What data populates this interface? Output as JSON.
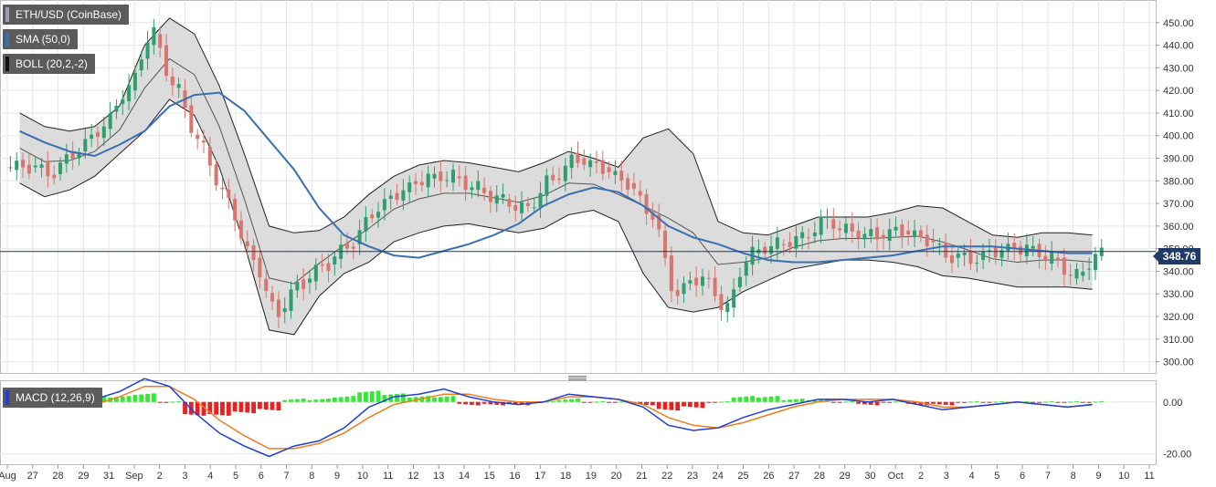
{
  "legend": {
    "symbol": "ETH/USD (CoinBase)",
    "sma": "SMA (50,0)",
    "boll": "BOLL (20,2,-2)",
    "macd": "MACD (12,26,9)"
  },
  "colors": {
    "up": "#2e9e6e",
    "down": "#d9756f",
    "sma": "#3a6fb0",
    "band_fill": "#d6d6d6",
    "macd_line": "#1f3fd6",
    "signal_line": "#f07c1c",
    "hist_pos": "#35e835",
    "hist_neg": "#e82020",
    "price_line": "#1f3b66",
    "grid": "#e6e6e6"
  },
  "price_badge": "348.76",
  "chart_data": [
    {
      "type": "candlestick",
      "title": "ETH/USD (CoinBase)",
      "ylim": [
        295,
        460
      ],
      "y_ticks": [
        "300.00",
        "310.00",
        "320.00",
        "330.00",
        "340.00",
        "350.00",
        "360.00",
        "370.00",
        "380.00",
        "390.00",
        "400.00",
        "410.00",
        "420.00",
        "430.00",
        "440.00",
        "450.00"
      ],
      "x_ticks": [
        "Aug",
        "27",
        "28",
        "29",
        "31",
        "Sep",
        "2",
        "3",
        "4",
        "5",
        "6",
        "7",
        "8",
        "9",
        "10",
        "11",
        "12",
        "13",
        "14",
        "15",
        "16",
        "17",
        "18",
        "19",
        "20",
        "21",
        "22",
        "23",
        "24",
        "25",
        "26",
        "27",
        "28",
        "29",
        "30",
        "Oct",
        "2",
        "3",
        "4",
        "5",
        "6",
        "7",
        "8",
        "9",
        "10",
        "11"
      ],
      "last_price": 348.76,
      "day_closes": [
        386,
        383,
        393,
        403,
        420,
        445,
        420,
        395,
        372,
        346,
        322,
        335,
        343,
        352,
        367,
        375,
        381,
        382,
        377,
        372,
        368,
        381,
        390,
        386,
        379,
        365,
        330,
        337,
        324,
        348,
        352,
        355,
        363,
        358,
        356,
        358,
        354,
        346,
        345,
        349,
        350,
        346,
        338,
        348
      ],
      "sma_50": [
        402,
        397,
        393,
        391,
        396,
        402,
        413,
        418,
        419,
        411,
        398,
        385,
        368,
        356,
        351,
        347,
        346,
        349,
        352,
        356,
        361,
        369,
        374,
        377,
        375,
        369,
        360,
        355,
        352,
        348,
        345,
        344,
        344,
        345,
        346,
        347,
        349,
        351,
        351,
        351,
        350,
        349,
        348,
        348
      ],
      "boll_upper": [
        410,
        404,
        402,
        404,
        413,
        440,
        452,
        445,
        422,
        392,
        360,
        357,
        358,
        364,
        374,
        382,
        387,
        389,
        388,
        386,
        384,
        388,
        393,
        390,
        386,
        399,
        403,
        392,
        362,
        357,
        356,
        360,
        364,
        364,
        364,
        366,
        369,
        368,
        362,
        356,
        355,
        357,
        357,
        356
      ],
      "boll_lower": [
        379,
        373,
        376,
        382,
        392,
        402,
        416,
        409,
        386,
        352,
        314,
        312,
        329,
        339,
        344,
        353,
        357,
        360,
        361,
        359,
        357,
        359,
        365,
        367,
        362,
        339,
        324,
        322,
        324,
        331,
        336,
        341,
        343,
        345,
        345,
        344,
        342,
        338,
        337,
        335,
        333,
        333,
        333,
        332
      ]
    },
    {
      "type": "bar",
      "title": "MACD (12,26,9)",
      "ylim": [
        -24,
        8
      ],
      "y_ticks": [
        "0.00",
        "-20.00"
      ],
      "macd": [
        -2,
        -2,
        -1,
        1,
        4,
        9,
        6,
        -4,
        -12,
        -17,
        -21,
        -17,
        -15,
        -10,
        -2,
        2,
        3,
        5,
        2,
        0,
        -1,
        0,
        3,
        2,
        1,
        -2,
        -9,
        -11,
        -10,
        -6,
        -3,
        -1,
        1,
        1,
        0,
        1,
        -1,
        -3,
        -2,
        -1,
        0,
        -1,
        -2,
        -1
      ],
      "signal": [
        -2,
        -2,
        -2,
        -1,
        2,
        6,
        6,
        1,
        -7,
        -13,
        -18,
        -18,
        -16,
        -12,
        -6,
        -1,
        1,
        3,
        3,
        1,
        0,
        0,
        2,
        2,
        1,
        -1,
        -6,
        -9,
        -10,
        -8,
        -5,
        -2,
        0,
        1,
        1,
        1,
        0,
        -2,
        -2,
        -1,
        0,
        -1,
        -2,
        -1
      ],
      "histogram": [
        0,
        0,
        1,
        2,
        2,
        3,
        0,
        -5,
        -5,
        -4,
        -3,
        1,
        1,
        2,
        4,
        3,
        2,
        2,
        -1,
        -1,
        -1,
        0,
        1,
        0,
        0,
        -1,
        -3,
        -2,
        0,
        2,
        2,
        1,
        1,
        0,
        -1,
        0,
        -1,
        -1,
        0,
        0,
        0,
        0,
        0,
        0
      ]
    }
  ]
}
